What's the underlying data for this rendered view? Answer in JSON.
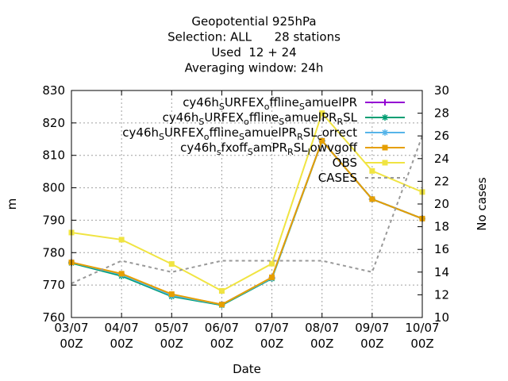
{
  "chart_data": {
    "type": "line",
    "title_lines": [
      "Geopotential 925hPa",
      "Selection: ALL      28 stations",
      "Used  12 + 24",
      "Averaging window: 24h"
    ],
    "xlabel": "Date",
    "ylabel": "m",
    "y2label": "No cases",
    "categories": [
      "03/07\n00Z",
      "04/07\n00Z",
      "05/07\n00Z",
      "06/07\n00Z",
      "07/07\n00Z",
      "08/07\n00Z",
      "09/07\n00Z",
      "10/07\n00Z"
    ],
    "ylim": [
      760,
      830
    ],
    "yticks": [
      760,
      770,
      780,
      790,
      800,
      810,
      820,
      830
    ],
    "y2lim": [
      10,
      30
    ],
    "y2ticks": [
      10,
      12,
      14,
      16,
      18,
      20,
      22,
      24,
      26,
      28,
      30
    ],
    "grid": true,
    "legend_position": "top-right",
    "series": [
      {
        "legend": [
          {
            "t": "cy46h"
          },
          {
            "t": "S",
            "sub": true
          },
          {
            "t": "URFEX"
          },
          {
            "t": "o",
            "sub": true
          },
          {
            "t": "ffline"
          },
          {
            "t": "S",
            "sub": true
          },
          {
            "t": "amuelPR"
          }
        ],
        "color": "#9400d3",
        "marker": "plus",
        "axis": "y",
        "values": [
          777.0,
          773.3,
          767.0,
          764.0,
          772.3,
          814.5,
          796.5,
          790.5
        ]
      },
      {
        "legend": [
          {
            "t": "cy46h"
          },
          {
            "t": "S",
            "sub": true
          },
          {
            "t": "URFEX"
          },
          {
            "t": "o",
            "sub": true
          },
          {
            "t": "ffline"
          },
          {
            "t": "S",
            "sub": true
          },
          {
            "t": "amuelPR"
          },
          {
            "t": "R",
            "sub": true
          },
          {
            "t": "SL"
          }
        ],
        "color": "#009e73",
        "marker": "star",
        "axis": "y",
        "values": [
          776.8,
          772.8,
          766.5,
          763.8,
          772.0,
          814.5,
          796.5,
          790.5
        ]
      },
      {
        "legend": [
          {
            "t": "cy46h"
          },
          {
            "t": "S",
            "sub": true
          },
          {
            "t": "URFEX"
          },
          {
            "t": "o",
            "sub": true
          },
          {
            "t": "ffline"
          },
          {
            "t": "S",
            "sub": true
          },
          {
            "t": "amuelPR"
          },
          {
            "t": "R",
            "sub": true
          },
          {
            "t": "SL"
          },
          {
            "t": "c",
            "sub": true
          },
          {
            "t": "orrect"
          }
        ],
        "color": "#56b4e9",
        "marker": "star",
        "axis": "y",
        "values": [
          777.0,
          773.2,
          766.8,
          764.0,
          772.2,
          814.5,
          796.5,
          790.5
        ]
      },
      {
        "legend": [
          {
            "t": "cy46h"
          },
          {
            "t": "s",
            "sub": true
          },
          {
            "t": "fxoff"
          },
          {
            "t": "S",
            "sub": true
          },
          {
            "t": "amPR"
          },
          {
            "t": "R",
            "sub": true
          },
          {
            "t": "SL"
          },
          {
            "t": "l",
            "sub": true
          },
          {
            "t": "owvgoff"
          }
        ],
        "color": "#e69f00",
        "marker": "square",
        "axis": "y",
        "values": [
          777.0,
          773.5,
          767.2,
          764.0,
          772.4,
          814.5,
          796.5,
          790.5
        ]
      },
      {
        "legend": [
          {
            "t": "OBS"
          }
        ],
        "color": "#f0e442",
        "marker": "square",
        "axis": "y",
        "values": [
          786.2,
          784.0,
          776.5,
          768.2,
          776.6,
          823.0,
          805.2,
          798.7
        ]
      },
      {
        "legend": [
          {
            "t": "CASES"
          }
        ],
        "color": "#999999",
        "marker": "none",
        "dashed": true,
        "axis": "y2",
        "values": [
          13,
          15,
          14,
          15,
          15,
          15,
          14,
          26
        ]
      }
    ]
  }
}
